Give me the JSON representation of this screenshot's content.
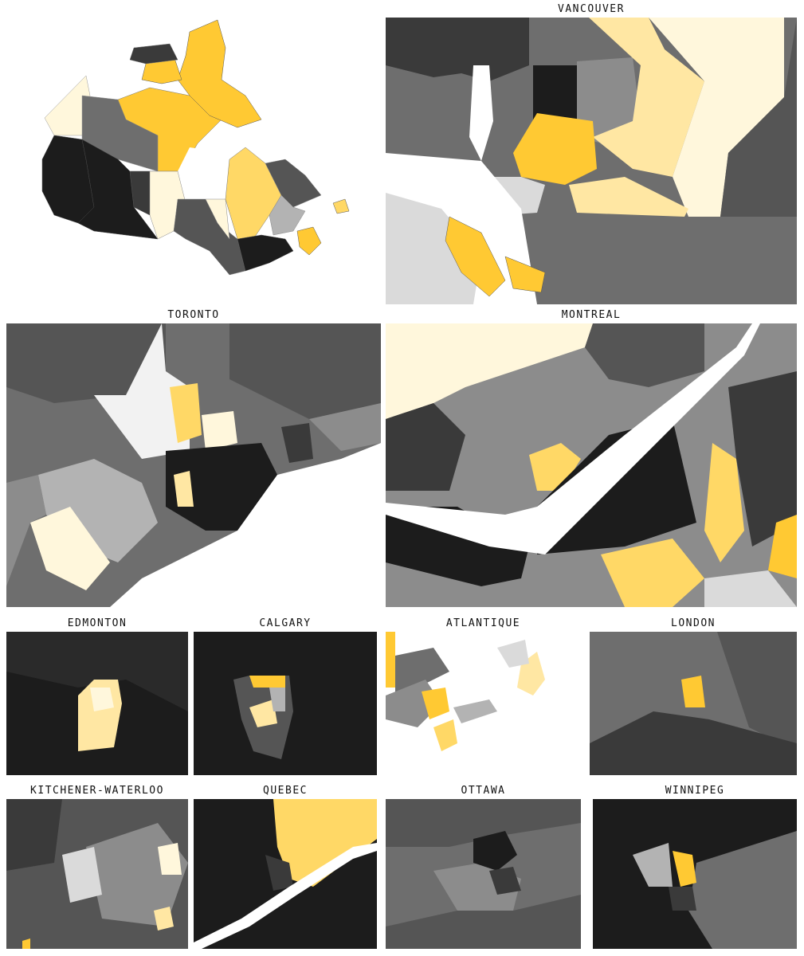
{
  "palette": {
    "black": "#1c1c1c",
    "dark": "#3a3a3a",
    "mid_dark": "#555555",
    "mid": "#6e6e6e",
    "mid_light": "#8c8c8c",
    "light": "#b3b3b3",
    "lighter": "#dadada",
    "cream": "#fff7dc",
    "pale_yellow": "#ffe7a3",
    "light_yellow": "#ffd866",
    "yellow": "#ffc933",
    "background": "#ffffff"
  },
  "panels": [
    {
      "id": "canada",
      "title": ""
    },
    {
      "id": "vancouver",
      "title": "VANCOUVER"
    },
    {
      "id": "toronto",
      "title": "TORONTO"
    },
    {
      "id": "montreal",
      "title": "MONTREAL"
    },
    {
      "id": "edmonton",
      "title": "EDMONTON"
    },
    {
      "id": "calgary",
      "title": "CALGARY"
    },
    {
      "id": "atlantique",
      "title": "ATLANTIQUE"
    },
    {
      "id": "london",
      "title": "LONDON"
    },
    {
      "id": "kitchener",
      "title": "KITCHENER-WATERLOO"
    },
    {
      "id": "quebec",
      "title": "QUEBEC"
    },
    {
      "id": "ottawa",
      "title": "OTTAWA"
    },
    {
      "id": "winnipeg",
      "title": "WINNIPEG"
    }
  ]
}
